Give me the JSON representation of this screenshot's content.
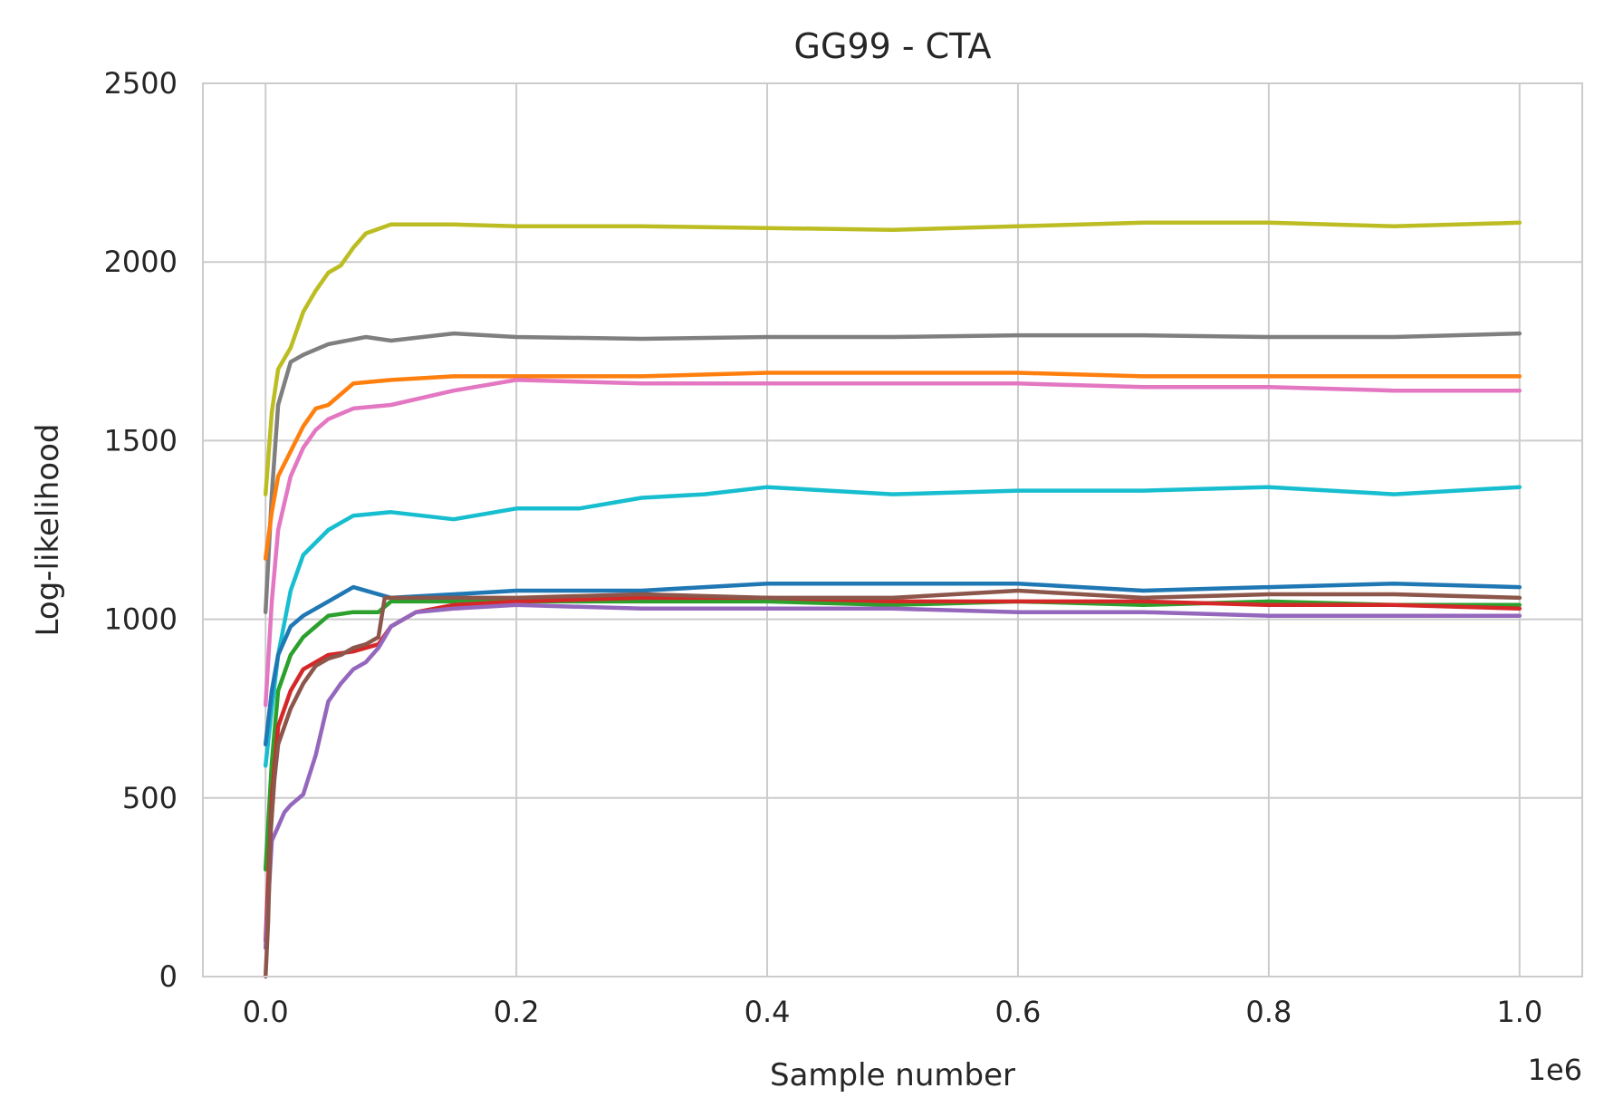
{
  "chart_data": {
    "type": "line",
    "title": "GG99 - CTA",
    "xlabel": "Sample number",
    "ylabel": "Log-likelihood",
    "x_offset_label": "1e6",
    "xlim": [
      -0.05,
      1.05
    ],
    "ylim": [
      0,
      2500
    ],
    "x_ticks": [
      0.0,
      0.2,
      0.4,
      0.6,
      0.8,
      1.0
    ],
    "x_tick_labels": [
      "0.0",
      "0.2",
      "0.4",
      "0.6",
      "0.8",
      "1.0"
    ],
    "y_ticks": [
      0,
      500,
      1000,
      1500,
      2000,
      2500
    ],
    "y_tick_labels": [
      "0",
      "500",
      "1000",
      "1500",
      "2000",
      "2500"
    ],
    "grid": true,
    "legend": "none",
    "series": [
      {
        "color": "#bcbd22",
        "x": [
          0.0,
          0.005,
          0.01,
          0.02,
          0.03,
          0.04,
          0.05,
          0.06,
          0.07,
          0.08,
          0.1,
          0.15,
          0.2,
          0.3,
          0.4,
          0.5,
          0.6,
          0.7,
          0.8,
          0.9,
          1.0
        ],
        "y": [
          1350,
          1580,
          1700,
          1760,
          1860,
          1920,
          1970,
          1990,
          2040,
          2080,
          2105,
          2105,
          2100,
          2100,
          2095,
          2090,
          2100,
          2110,
          2110,
          2100,
          2110
        ]
      },
      {
        "color": "#7f7f7f",
        "x": [
          0.0,
          0.005,
          0.01,
          0.02,
          0.03,
          0.05,
          0.08,
          0.1,
          0.15,
          0.2,
          0.3,
          0.4,
          0.5,
          0.6,
          0.7,
          0.8,
          0.9,
          1.0
        ],
        "y": [
          1020,
          1350,
          1600,
          1720,
          1740,
          1770,
          1790,
          1780,
          1800,
          1790,
          1785,
          1790,
          1790,
          1795,
          1795,
          1790,
          1790,
          1800
        ]
      },
      {
        "color": "#ff7f0e",
        "x": [
          0.0,
          0.005,
          0.01,
          0.02,
          0.03,
          0.04,
          0.05,
          0.07,
          0.1,
          0.15,
          0.2,
          0.3,
          0.4,
          0.5,
          0.6,
          0.7,
          0.8,
          0.9,
          1.0
        ],
        "y": [
          1170,
          1300,
          1400,
          1470,
          1540,
          1590,
          1600,
          1660,
          1670,
          1680,
          1680,
          1680,
          1690,
          1690,
          1690,
          1680,
          1680,
          1680,
          1680
        ]
      },
      {
        "color": "#e377c2",
        "x": [
          0.0,
          0.005,
          0.01,
          0.02,
          0.03,
          0.04,
          0.05,
          0.07,
          0.1,
          0.15,
          0.2,
          0.3,
          0.4,
          0.5,
          0.6,
          0.7,
          0.8,
          0.9,
          1.0
        ],
        "y": [
          760,
          1050,
          1250,
          1400,
          1480,
          1530,
          1560,
          1590,
          1600,
          1640,
          1670,
          1660,
          1660,
          1660,
          1660,
          1650,
          1650,
          1640,
          1640
        ]
      },
      {
        "color": "#17becf",
        "x": [
          0.0,
          0.005,
          0.01,
          0.02,
          0.03,
          0.05,
          0.07,
          0.1,
          0.15,
          0.2,
          0.25,
          0.3,
          0.35,
          0.4,
          0.5,
          0.6,
          0.7,
          0.8,
          0.9,
          1.0
        ],
        "y": [
          590,
          750,
          900,
          1080,
          1180,
          1250,
          1290,
          1300,
          1280,
          1310,
          1310,
          1340,
          1350,
          1370,
          1350,
          1360,
          1360,
          1370,
          1350,
          1370
        ]
      },
      {
        "color": "#1f77b4",
        "x": [
          0.0,
          0.005,
          0.01,
          0.02,
          0.03,
          0.05,
          0.07,
          0.1,
          0.15,
          0.2,
          0.3,
          0.4,
          0.5,
          0.6,
          0.7,
          0.8,
          0.9,
          1.0
        ],
        "y": [
          650,
          800,
          900,
          980,
          1010,
          1050,
          1090,
          1060,
          1070,
          1080,
          1080,
          1100,
          1100,
          1100,
          1080,
          1090,
          1100,
          1090
        ]
      },
      {
        "color": "#2ca02c",
        "x": [
          0.0,
          0.005,
          0.01,
          0.02,
          0.03,
          0.04,
          0.05,
          0.07,
          0.09,
          0.1,
          0.15,
          0.2,
          0.3,
          0.4,
          0.5,
          0.6,
          0.7,
          0.8,
          0.9,
          1.0
        ],
        "y": [
          300,
          600,
          800,
          900,
          950,
          980,
          1010,
          1020,
          1020,
          1050,
          1050,
          1050,
          1050,
          1050,
          1040,
          1050,
          1040,
          1050,
          1040,
          1040
        ]
      },
      {
        "color": "#d62728",
        "x": [
          0.0,
          0.005,
          0.01,
          0.02,
          0.03,
          0.04,
          0.05,
          0.07,
          0.09,
          0.1,
          0.12,
          0.15,
          0.2,
          0.3,
          0.4,
          0.5,
          0.6,
          0.7,
          0.8,
          0.9,
          1.0
        ],
        "y": [
          100,
          500,
          700,
          800,
          860,
          880,
          900,
          910,
          930,
          980,
          1020,
          1040,
          1050,
          1060,
          1060,
          1050,
          1050,
          1050,
          1040,
          1040,
          1030
        ]
      },
      {
        "color": "#9467bd",
        "x": [
          0.0,
          0.005,
          0.01,
          0.015,
          0.02,
          0.03,
          0.04,
          0.05,
          0.06,
          0.07,
          0.08,
          0.09,
          0.1,
          0.12,
          0.15,
          0.2,
          0.3,
          0.4,
          0.5,
          0.6,
          0.7,
          0.8,
          0.9,
          1.0
        ],
        "y": [
          80,
          380,
          420,
          460,
          480,
          510,
          620,
          770,
          820,
          860,
          880,
          920,
          980,
          1020,
          1030,
          1040,
          1030,
          1030,
          1030,
          1020,
          1020,
          1010,
          1010,
          1010
        ]
      },
      {
        "color": "#8c564b",
        "x": [
          0.0,
          0.002,
          0.004,
          0.007,
          0.01,
          0.02,
          0.03,
          0.04,
          0.05,
          0.06,
          0.07,
          0.08,
          0.09,
          0.095,
          0.1,
          0.15,
          0.2,
          0.3,
          0.4,
          0.5,
          0.6,
          0.7,
          0.8,
          0.9,
          1.0
        ],
        "y": [
          0,
          150,
          400,
          550,
          650,
          750,
          820,
          870,
          890,
          900,
          920,
          930,
          950,
          1060,
          1060,
          1060,
          1060,
          1070,
          1060,
          1060,
          1080,
          1060,
          1070,
          1070,
          1060
        ]
      }
    ]
  }
}
